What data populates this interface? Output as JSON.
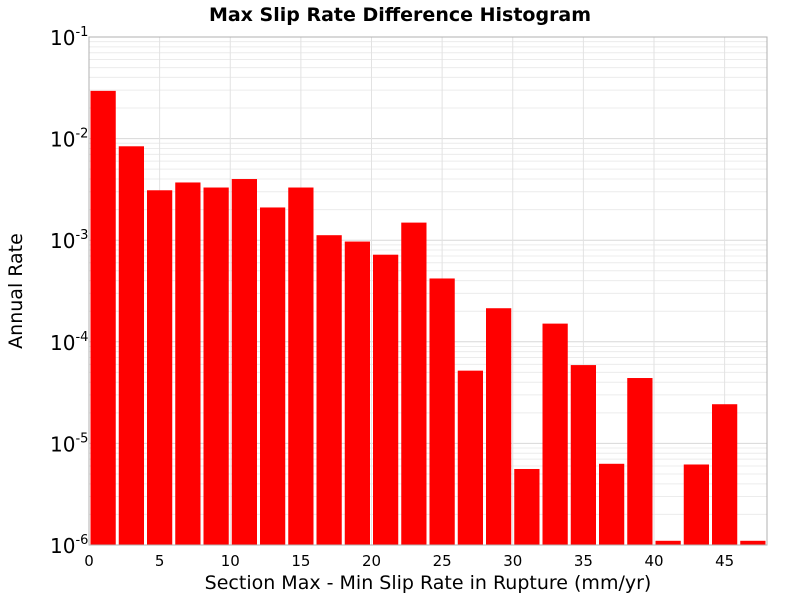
{
  "chart_data": {
    "type": "bar",
    "title": "Max Slip Rate Difference Histogram",
    "xlabel": "Section Max - Min Slip Rate in Rupture (mm/yr)",
    "ylabel": "Annual Rate",
    "y_scale": "log",
    "ylim": [
      1e-06,
      0.1
    ],
    "xlim": [
      0,
      48
    ],
    "x_ticks": [
      "0",
      "5",
      "10",
      "15",
      "20",
      "25",
      "30",
      "35",
      "40",
      "45"
    ],
    "y_ticks": [
      {
        "base": "10",
        "exp": "-1"
      },
      {
        "base": "10",
        "exp": "-2"
      },
      {
        "base": "10",
        "exp": "-3"
      },
      {
        "base": "10",
        "exp": "-4"
      },
      {
        "base": "10",
        "exp": "-5"
      },
      {
        "base": "10",
        "exp": "-6"
      }
    ],
    "bin_width": 2,
    "bins": [
      {
        "x": 1,
        "y": 0.0295
      },
      {
        "x": 3,
        "y": 0.0084
      },
      {
        "x": 5,
        "y": 0.0031
      },
      {
        "x": 7,
        "y": 0.0037
      },
      {
        "x": 9,
        "y": 0.0033
      },
      {
        "x": 11,
        "y": 0.004
      },
      {
        "x": 13,
        "y": 0.0021
      },
      {
        "x": 15,
        "y": 0.0033
      },
      {
        "x": 17,
        "y": 0.00112
      },
      {
        "x": 19,
        "y": 0.00097
      },
      {
        "x": 21,
        "y": 0.00072
      },
      {
        "x": 23,
        "y": 0.00149
      },
      {
        "x": 25,
        "y": 0.00042
      },
      {
        "x": 27,
        "y": 5.2e-05
      },
      {
        "x": 29,
        "y": 0.000214
      },
      {
        "x": 31,
        "y": 5.6e-06
      },
      {
        "x": 33,
        "y": 0.000151
      },
      {
        "x": 35,
        "y": 5.9e-05
      },
      {
        "x": 37,
        "y": 6.3e-06
      },
      {
        "x": 39,
        "y": 4.4e-05
      },
      {
        "x": 41,
        "y": 1.1e-06
      },
      {
        "x": 43,
        "y": 6.2e-06
      },
      {
        "x": 45,
        "y": 2.43e-05
      },
      {
        "x": 47,
        "y": 1.1e-06
      }
    ],
    "bar_color": "#ff0000",
    "grid": true,
    "legend": "none"
  }
}
